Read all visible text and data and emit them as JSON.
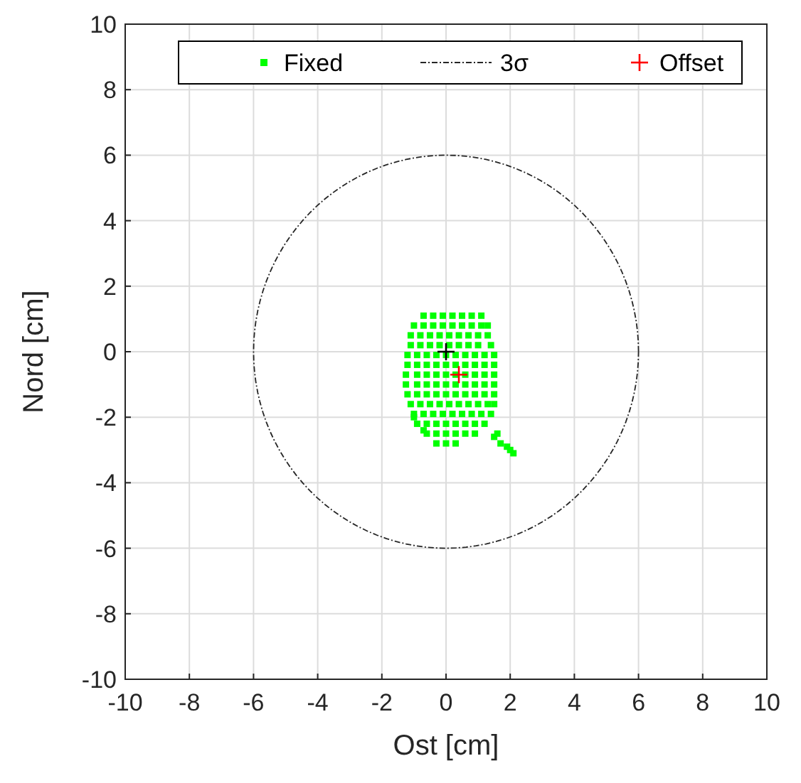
{
  "chart_data": {
    "type": "scatter",
    "xlabel": "Ost [cm]",
    "ylabel": "Nord [cm]",
    "xlim": [
      -10,
      10
    ],
    "ylim": [
      -10,
      10
    ],
    "xticks": [
      -10,
      -8,
      -6,
      -4,
      -2,
      0,
      2,
      4,
      6,
      8,
      10
    ],
    "yticks": [
      -10,
      -8,
      -6,
      -4,
      -2,
      0,
      2,
      4,
      6,
      8,
      10
    ],
    "grid": true,
    "legend": "top",
    "annotations": [
      "3σ"
    ],
    "series": [
      {
        "name": "Fixed",
        "type": "scatter",
        "marker": "square",
        "color": "#00ff00",
        "x": [
          -0.7,
          -0.4,
          -0.1,
          0.2,
          0.5,
          0.8,
          1.1,
          -1.0,
          -0.7,
          -0.4,
          -0.1,
          0.2,
          0.5,
          0.8,
          1.1,
          1.3,
          -1.1,
          -0.8,
          -0.5,
          -0.2,
          0.1,
          0.4,
          0.7,
          1.0,
          1.3,
          -1.1,
          -0.8,
          -0.5,
          -0.2,
          0.1,
          0.4,
          0.7,
          1.0,
          1.4,
          -1.2,
          -0.9,
          -0.6,
          -0.3,
          0,
          0.3,
          0.6,
          0.9,
          1.2,
          1.5,
          -1.2,
          -0.9,
          -0.6,
          -0.3,
          0,
          0.3,
          0.6,
          0.9,
          1.2,
          1.5,
          -1.25,
          -0.9,
          -0.6,
          -0.3,
          0,
          0.3,
          0.6,
          0.9,
          1.2,
          1.5,
          -1.25,
          -0.9,
          -0.6,
          -0.3,
          0,
          0.3,
          0.6,
          0.9,
          1.2,
          1.5,
          -1.2,
          -0.9,
          -0.6,
          -0.3,
          0,
          0.3,
          0.6,
          0.9,
          1.2,
          1.5,
          -1.1,
          -0.8,
          -0.5,
          -0.2,
          0.1,
          0.4,
          0.7,
          1.0,
          1.3,
          1.5,
          -1.0,
          -0.7,
          -0.4,
          -0.1,
          0.2,
          0.5,
          0.8,
          1.1,
          1.4,
          -0.9,
          -0.6,
          -0.3,
          0,
          0.3,
          0.6,
          0.9,
          1.2,
          -0.6,
          -0.3,
          0,
          0.3,
          0.6,
          0.9,
          -0.3,
          0,
          0.3,
          1.5,
          1.6,
          1.7,
          1.9,
          2.0,
          2.1,
          -0.7,
          -1.0
        ],
        "values": [
          1.1,
          1.1,
          1.1,
          1.1,
          1.1,
          1.1,
          1.1,
          0.8,
          0.8,
          0.8,
          0.8,
          0.8,
          0.8,
          0.8,
          0.8,
          0.8,
          0.5,
          0.5,
          0.5,
          0.5,
          0.5,
          0.5,
          0.5,
          0.5,
          0.5,
          0.2,
          0.2,
          0.2,
          0.2,
          0.2,
          0.2,
          0.2,
          0.2,
          0.2,
          -0.1,
          -0.1,
          -0.1,
          -0.1,
          -0.1,
          -0.1,
          -0.1,
          -0.1,
          -0.1,
          -0.1,
          -0.4,
          -0.4,
          -0.4,
          -0.4,
          -0.4,
          -0.4,
          -0.4,
          -0.4,
          -0.4,
          -0.4,
          -0.7,
          -0.7,
          -0.7,
          -0.7,
          -0.7,
          -0.7,
          -0.7,
          -0.7,
          -0.7,
          -0.7,
          -1.0,
          -1.0,
          -1.0,
          -1.0,
          -1.0,
          -1.0,
          -1.0,
          -1.0,
          -1.0,
          -1.0,
          -1.3,
          -1.3,
          -1.3,
          -1.3,
          -1.3,
          -1.3,
          -1.3,
          -1.3,
          -1.3,
          -1.3,
          -1.6,
          -1.6,
          -1.6,
          -1.6,
          -1.6,
          -1.6,
          -1.6,
          -1.6,
          -1.6,
          -1.6,
          -1.9,
          -1.9,
          -1.9,
          -1.9,
          -1.9,
          -1.9,
          -1.9,
          -1.9,
          -1.9,
          -2.2,
          -2.2,
          -2.2,
          -2.2,
          -2.2,
          -2.2,
          -2.2,
          -2.2,
          -2.5,
          -2.5,
          -2.5,
          -2.5,
          -2.5,
          -2.5,
          -2.8,
          -2.8,
          -2.8,
          -2.6,
          -2.5,
          -2.8,
          -2.9,
          -3.0,
          -3.1,
          -2.4,
          -2.0
        ]
      },
      {
        "type": "scatter",
        "marker": "cross",
        "color": "#000000",
        "x": [
          0
        ],
        "values": [
          0
        ]
      },
      {
        "name": "Offset",
        "type": "scatter",
        "marker": "cross",
        "color": "#ff0000",
        "x": [
          0.4
        ],
        "values": [
          -0.7
        ]
      }
    ]
  }
}
